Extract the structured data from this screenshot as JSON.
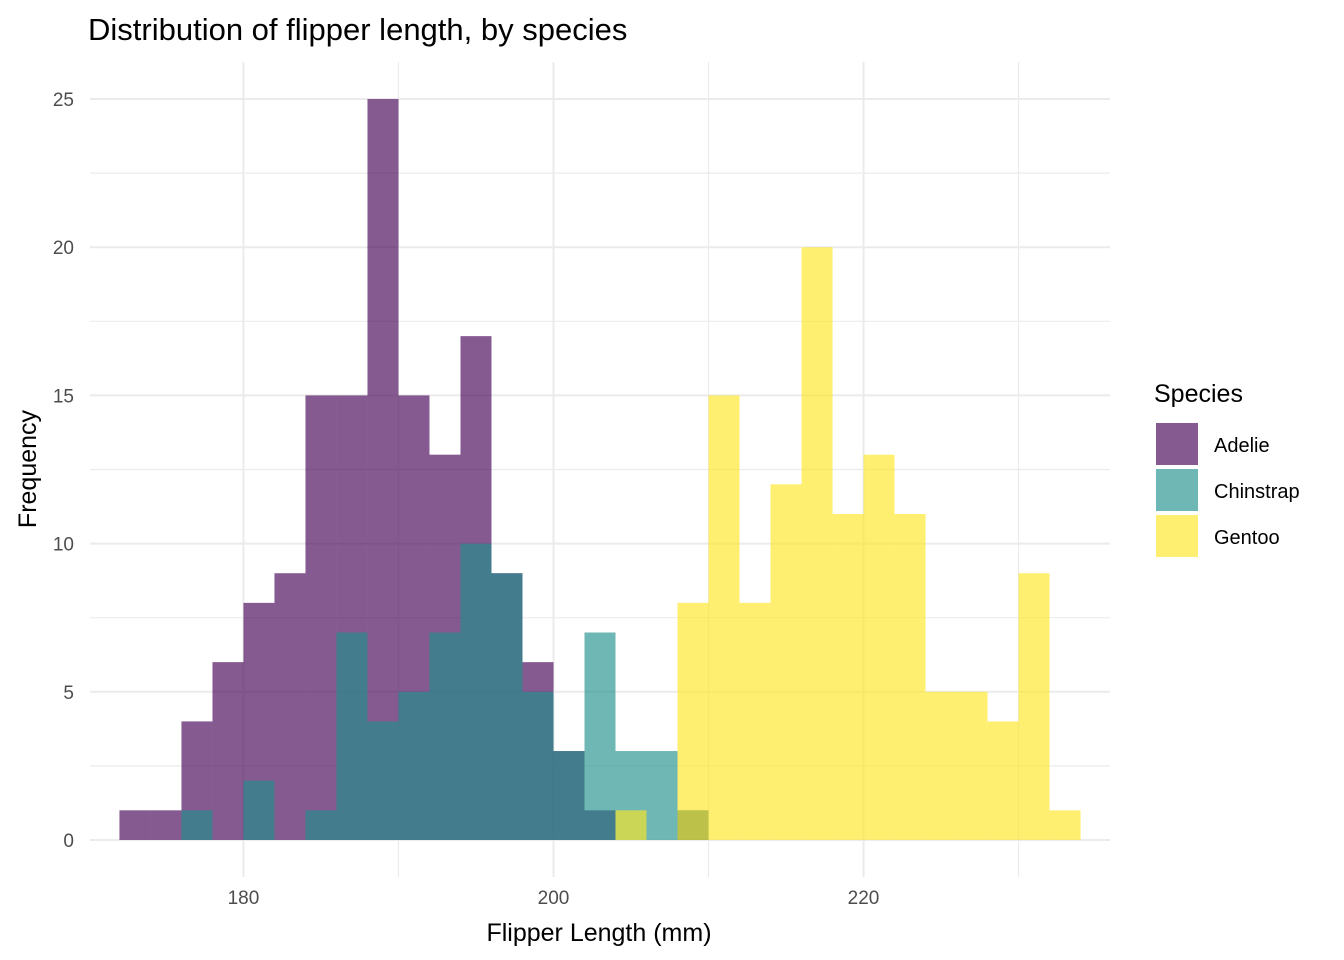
{
  "chart_data": {
    "type": "bar",
    "subtype": "overlapping-histogram",
    "title": "Distribution of flipper length, by species",
    "xlabel": "Flipper Length (mm)",
    "ylabel": "Frequency",
    "xlim": [
      170.1,
      235.9
    ],
    "ylim": [
      -1.25,
      26.25
    ],
    "x_ticks": [
      180,
      200,
      220
    ],
    "y_ticks": [
      0,
      5,
      10,
      15,
      20,
      25
    ],
    "grid": true,
    "bin_width": 2.0,
    "bars_opacity": 0.65,
    "legend": {
      "title": "Species",
      "placement": "right"
    },
    "series": [
      {
        "name": "Adelie",
        "color": "#440154",
        "bins": [
          {
            "x0": 172.0,
            "x1": 174.0,
            "count": 1
          },
          {
            "x0": 174.0,
            "x1": 176.0,
            "count": 1
          },
          {
            "x0": 176.0,
            "x1": 178.0,
            "count": 4
          },
          {
            "x0": 178.0,
            "x1": 180.0,
            "count": 6
          },
          {
            "x0": 180.0,
            "x1": 182.0,
            "count": 8
          },
          {
            "x0": 182.0,
            "x1": 184.0,
            "count": 9
          },
          {
            "x0": 184.0,
            "x1": 186.0,
            "count": 15
          },
          {
            "x0": 186.0,
            "x1": 188.0,
            "count": 15
          },
          {
            "x0": 188.0,
            "x1": 190.0,
            "count": 25
          },
          {
            "x0": 190.0,
            "x1": 192.0,
            "count": 15
          },
          {
            "x0": 192.0,
            "x1": 194.0,
            "count": 13
          },
          {
            "x0": 194.0,
            "x1": 196.0,
            "count": 17
          },
          {
            "x0": 196.0,
            "x1": 198.0,
            "count": 9
          },
          {
            "x0": 198.0,
            "x1": 200.0,
            "count": 6
          },
          {
            "x0": 200.0,
            "x1": 202.0,
            "count": 3
          },
          {
            "x0": 202.0,
            "x1": 204.0,
            "count": 1
          },
          {
            "x0": 204.0,
            "x1": 206.0,
            "count": 0
          },
          {
            "x0": 206.0,
            "x1": 208.0,
            "count": 0
          },
          {
            "x0": 208.0,
            "x1": 210.0,
            "count": 1
          }
        ]
      },
      {
        "name": "Chinstrap",
        "color": "#21908C",
        "bins": [
          {
            "x0": 176.0,
            "x1": 178.0,
            "count": 1
          },
          {
            "x0": 178.0,
            "x1": 180.0,
            "count": 0
          },
          {
            "x0": 180.0,
            "x1": 182.0,
            "count": 2
          },
          {
            "x0": 182.0,
            "x1": 184.0,
            "count": 0
          },
          {
            "x0": 184.0,
            "x1": 186.0,
            "count": 1
          },
          {
            "x0": 186.0,
            "x1": 188.0,
            "count": 7
          },
          {
            "x0": 188.0,
            "x1": 190.0,
            "count": 4
          },
          {
            "x0": 190.0,
            "x1": 192.0,
            "count": 5
          },
          {
            "x0": 192.0,
            "x1": 194.0,
            "count": 7
          },
          {
            "x0": 194.0,
            "x1": 196.0,
            "count": 10
          },
          {
            "x0": 196.0,
            "x1": 198.0,
            "count": 9
          },
          {
            "x0": 198.0,
            "x1": 200.0,
            "count": 5
          },
          {
            "x0": 200.0,
            "x1": 202.0,
            "count": 3
          },
          {
            "x0": 202.0,
            "x1": 204.0,
            "count": 7
          },
          {
            "x0": 204.0,
            "x1": 206.0,
            "count": 3
          },
          {
            "x0": 206.0,
            "x1": 208.0,
            "count": 3
          },
          {
            "x0": 208.0,
            "x1": 210.0,
            "count": 1
          }
        ]
      },
      {
        "name": "Gentoo",
        "color": "#FDE725",
        "bins": [
          {
            "x0": 202.0,
            "x1": 204.0,
            "count": 0
          },
          {
            "x0": 204.0,
            "x1": 206.0,
            "count": 1
          },
          {
            "x0": 206.0,
            "x1": 208.0,
            "count": 0
          },
          {
            "x0": 208.0,
            "x1": 210.0,
            "count": 8
          },
          {
            "x0": 210.0,
            "x1": 212.0,
            "count": 15
          },
          {
            "x0": 212.0,
            "x1": 214.0,
            "count": 8
          },
          {
            "x0": 214.0,
            "x1": 216.0,
            "count": 12
          },
          {
            "x0": 216.0,
            "x1": 218.0,
            "count": 20
          },
          {
            "x0": 218.0,
            "x1": 220.0,
            "count": 11
          },
          {
            "x0": 220.0,
            "x1": 222.0,
            "count": 13
          },
          {
            "x0": 222.0,
            "x1": 224.0,
            "count": 11
          },
          {
            "x0": 224.0,
            "x1": 226.0,
            "count": 5
          },
          {
            "x0": 226.0,
            "x1": 228.0,
            "count": 5
          },
          {
            "x0": 228.0,
            "x1": 230.0,
            "count": 4
          },
          {
            "x0": 230.0,
            "x1": 232.0,
            "count": 9
          },
          {
            "x0": 232.0,
            "x1": 234.0,
            "count": 1
          }
        ]
      }
    ]
  }
}
